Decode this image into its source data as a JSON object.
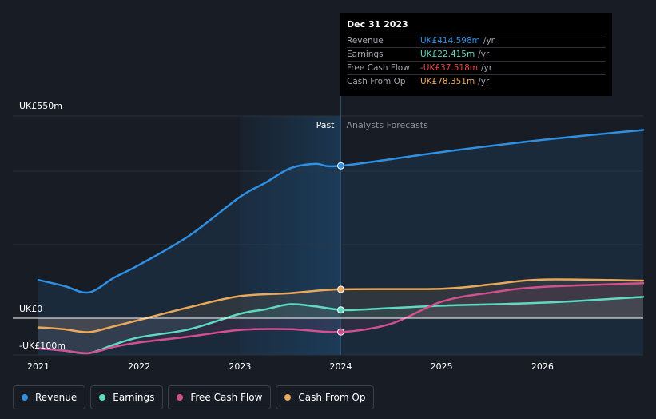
{
  "chart_data": {
    "type": "line",
    "y_unit": "UK£m",
    "y_axis_labels": [
      "UK£550m",
      "UK£0",
      "-UK£100m"
    ],
    "ylim": [
      -100,
      550
    ],
    "x_ticks": [
      "2021",
      "2022",
      "2023",
      "2024",
      "2025",
      "2026"
    ],
    "xlim": [
      2021.0,
      2027.0
    ],
    "divider_x": 2024.0,
    "past_label": "Past",
    "forecast_label": "Analysts Forecasts",
    "series": [
      {
        "name": "Revenue",
        "color": "#2f8fe2",
        "points": [
          [
            2021.0,
            104
          ],
          [
            2021.25,
            88
          ],
          [
            2021.5,
            70
          ],
          [
            2021.75,
            110
          ],
          [
            2022.0,
            145
          ],
          [
            2022.5,
            225
          ],
          [
            2023.0,
            330
          ],
          [
            2023.25,
            368
          ],
          [
            2023.5,
            408
          ],
          [
            2023.75,
            420
          ],
          [
            2024.0,
            414.6
          ],
          [
            2025.0,
            452
          ],
          [
            2026.0,
            485
          ],
          [
            2027.0,
            512
          ]
        ]
      },
      {
        "name": "Earnings",
        "color": "#5fd9c2",
        "points": [
          [
            2021.0,
            -82
          ],
          [
            2021.25,
            -88
          ],
          [
            2021.5,
            -95
          ],
          [
            2021.75,
            -72
          ],
          [
            2022.0,
            -52
          ],
          [
            2022.5,
            -30
          ],
          [
            2023.0,
            12
          ],
          [
            2023.25,
            24
          ],
          [
            2023.5,
            38
          ],
          [
            2023.75,
            32
          ],
          [
            2024.0,
            22.4
          ],
          [
            2024.25,
            24
          ],
          [
            2025.0,
            34
          ],
          [
            2026.0,
            42
          ],
          [
            2027.0,
            58
          ]
        ]
      },
      {
        "name": "Free Cash Flow",
        "color": "#d2508e",
        "points": [
          [
            2021.0,
            -82
          ],
          [
            2021.25,
            -88
          ],
          [
            2021.5,
            -95
          ],
          [
            2021.75,
            -78
          ],
          [
            2022.0,
            -66
          ],
          [
            2022.5,
            -50
          ],
          [
            2023.0,
            -32
          ],
          [
            2023.5,
            -30
          ],
          [
            2024.0,
            -37.5
          ],
          [
            2024.5,
            -15
          ],
          [
            2025.0,
            45
          ],
          [
            2025.5,
            70
          ],
          [
            2026.0,
            85
          ],
          [
            2027.0,
            95
          ]
        ]
      },
      {
        "name": "Cash From Op",
        "color": "#eaa85a",
        "points": [
          [
            2021.0,
            -25
          ],
          [
            2021.25,
            -30
          ],
          [
            2021.5,
            -38
          ],
          [
            2021.75,
            -22
          ],
          [
            2022.0,
            -5
          ],
          [
            2022.5,
            30
          ],
          [
            2023.0,
            60
          ],
          [
            2023.5,
            68
          ],
          [
            2024.0,
            78.4
          ],
          [
            2025.0,
            80
          ],
          [
            2025.5,
            92
          ],
          [
            2026.0,
            105
          ],
          [
            2027.0,
            102
          ]
        ]
      }
    ]
  },
  "tooltip": {
    "date": "Dec 31 2023",
    "rows": [
      {
        "name": "Revenue",
        "value": "UK£414.598m",
        "unit": "/yr",
        "color": "#2f8fe2"
      },
      {
        "name": "Earnings",
        "value": "UK£22.415m",
        "unit": "/yr",
        "color": "#5fd9c2"
      },
      {
        "name": "Free Cash Flow",
        "value": "-UK£37.518m",
        "unit": "/yr",
        "color": "#e84848"
      },
      {
        "name": "Cash From Op",
        "value": "UK£78.351m",
        "unit": "/yr",
        "color": "#eaa85a"
      }
    ]
  },
  "legend": [
    {
      "label": "Revenue",
      "color": "#2f8fe2"
    },
    {
      "label": "Earnings",
      "color": "#5fd9c2"
    },
    {
      "label": "Free Cash Flow",
      "color": "#d2508e"
    },
    {
      "label": "Cash From Op",
      "color": "#eaa85a"
    }
  ]
}
